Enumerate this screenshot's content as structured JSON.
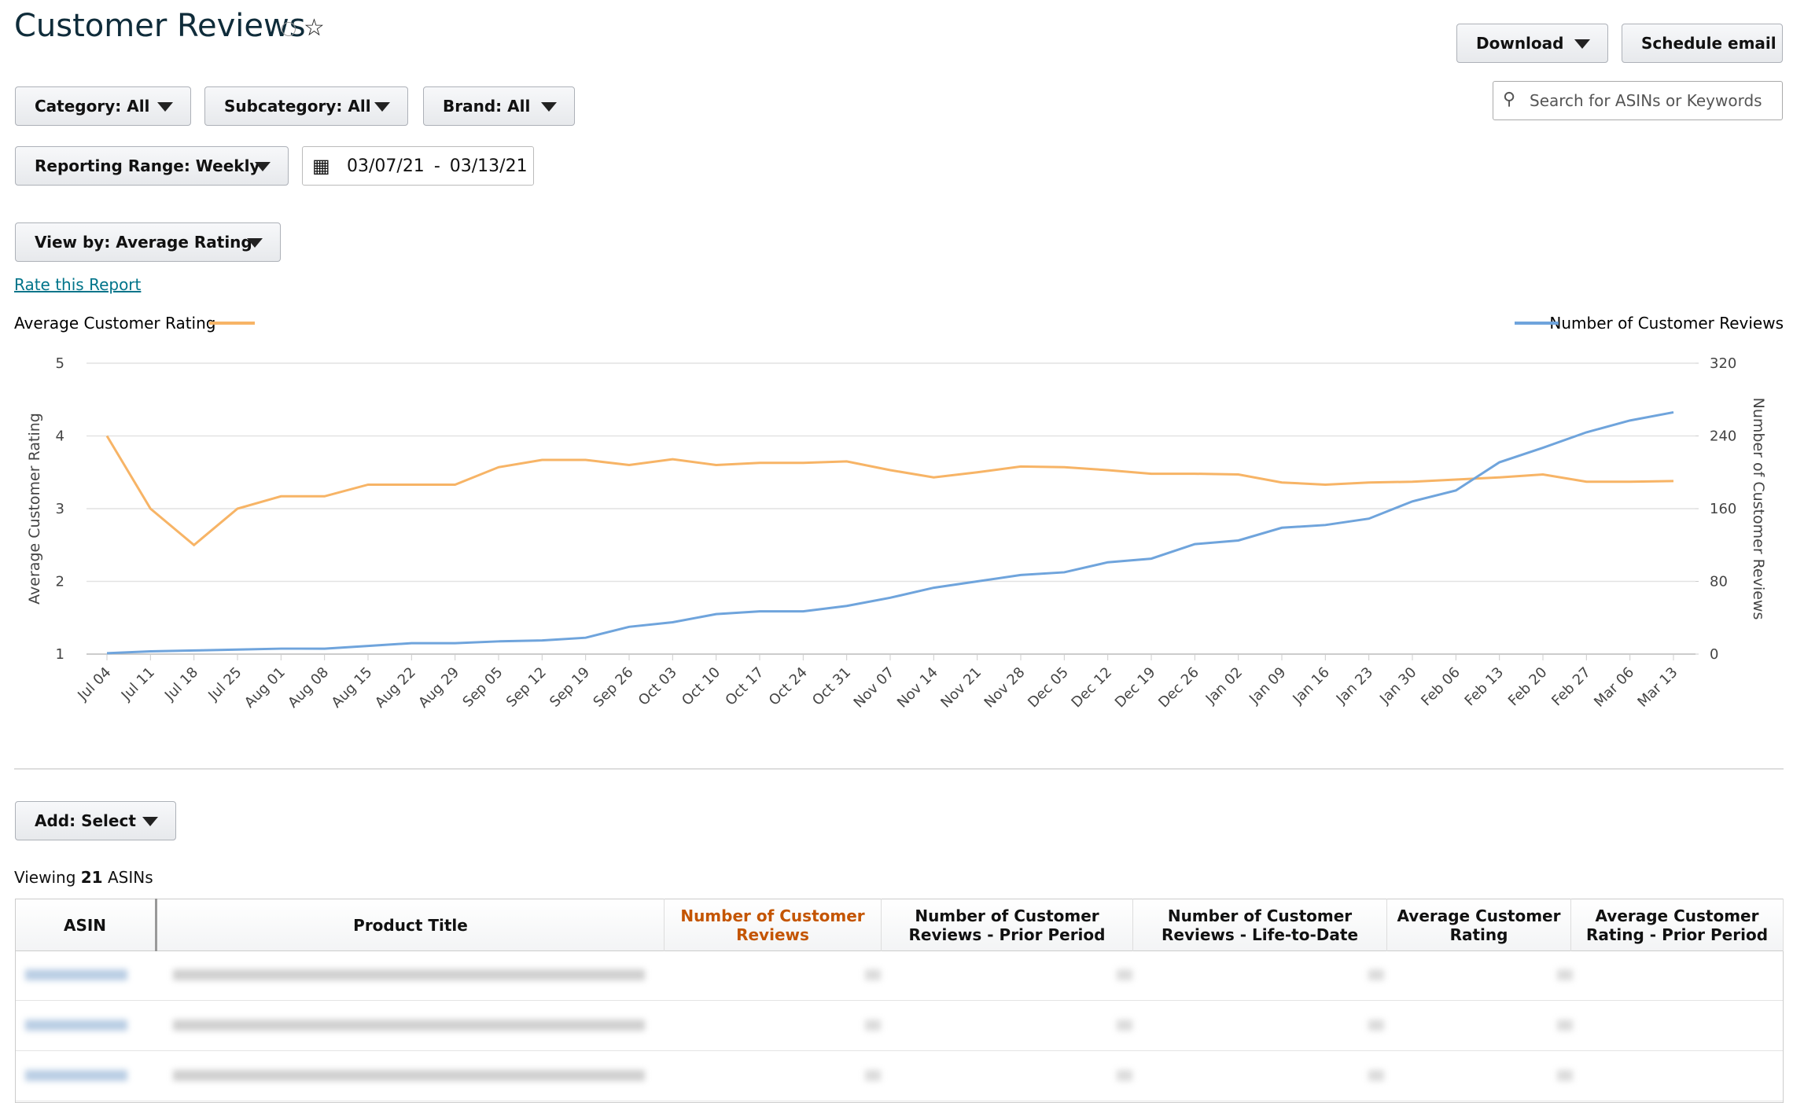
{
  "header": {
    "title": "Customer Reviews",
    "download": "Download",
    "schedule": "Schedule email",
    "search_placeholder": "Search for ASINs or Keywords"
  },
  "filters": {
    "category": "Category: All",
    "subcategory": "Subcategory: All",
    "brand": "Brand: All",
    "range": "Reporting Range: Weekly",
    "date_from": "03/07/21",
    "date_sep": "-",
    "date_to": "03/13/21",
    "view_by": "View by: Average Rating",
    "rate_link": "Rate this Report"
  },
  "chart_data": {
    "type": "line",
    "categories": [
      "Jul 04",
      "Jul 11",
      "Jul 18",
      "Jul 25",
      "Aug 01",
      "Aug 08",
      "Aug 15",
      "Aug 22",
      "Aug 29",
      "Sep 05",
      "Sep 12",
      "Sep 19",
      "Sep 26",
      "Oct 03",
      "Oct 10",
      "Oct 17",
      "Oct 24",
      "Oct 31",
      "Nov 07",
      "Nov 14",
      "Nov 21",
      "Nov 28",
      "Dec 05",
      "Dec 12",
      "Dec 19",
      "Dec 26",
      "Jan 02",
      "Jan 09",
      "Jan 16",
      "Jan 23",
      "Jan 30",
      "Feb 06",
      "Feb 13",
      "Feb 20",
      "Feb 27",
      "Mar 06",
      "Mar 13"
    ],
    "series": [
      {
        "name": "Average Customer Rating",
        "color": "#f7b466",
        "values": [
          4.0,
          3.0,
          2.5,
          3.0,
          3.17,
          3.17,
          3.33,
          3.33,
          3.33,
          3.57,
          3.67,
          3.67,
          3.6,
          3.68,
          3.6,
          3.63,
          3.63,
          3.65,
          3.53,
          3.43,
          3.5,
          3.58,
          3.57,
          3.53,
          3.48,
          3.48,
          3.47,
          3.36,
          3.33,
          3.36,
          3.37,
          3.4,
          3.43,
          3.47,
          3.37,
          3.37,
          3.38
        ]
      },
      {
        "name": "Number of Customer Reviews",
        "color": "#6fa4dc",
        "axis": "y2",
        "values": [
          1,
          3,
          4,
          5,
          6,
          6,
          9,
          12,
          12,
          14,
          15,
          18,
          30,
          35,
          44,
          47,
          47,
          53,
          62,
          73,
          80,
          87,
          90,
          101,
          105,
          121,
          125,
          139,
          142,
          149,
          168,
          180,
          211,
          227,
          244,
          257,
          266
        ]
      }
    ],
    "ylabel": "Average Customer Rating",
    "y2label": "Number of Customer Reviews",
    "ylim": [
      1,
      5
    ],
    "yticks": [
      1,
      2,
      3,
      4,
      5
    ],
    "y2lim": [
      0,
      320
    ],
    "y2ticks": [
      0,
      80,
      160,
      240,
      320
    ],
    "grid": true
  },
  "add_select": "Add: Select",
  "table": {
    "viewing_prefix": "Viewing",
    "viewing_count": 21,
    "viewing_suffix": "ASINs",
    "columns": [
      "ASIN",
      "Product Title",
      "Number of Customer Reviews",
      "Number of Customer Reviews - Prior Period",
      "Number of Customer Reviews - Life-to-Date",
      "Average Customer Rating",
      "Average Customer Rating - Prior Period"
    ]
  }
}
